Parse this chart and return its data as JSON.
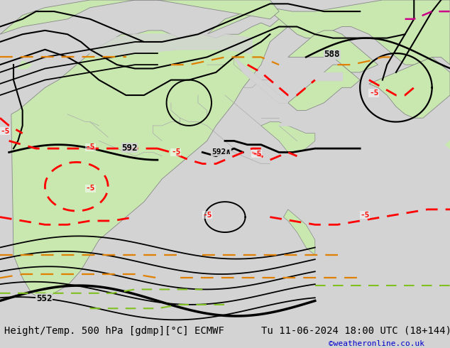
{
  "title_left": "Height/Temp. 500 hPa [gdmp][°C] ECMWF",
  "title_right": "Tu 11-06-2024 18:00 UTC (18+144)",
  "watermark": "©weatheronline.co.uk",
  "bg_color": "#d3d3d3",
  "land_color": "#c8e8b0",
  "ocean_color": "#d3d3d3",
  "contour_color": "#000000",
  "temp_neg5_color": "#ff0000",
  "isotherm_orange": "#e08000",
  "isotherm_green": "#80c020",
  "coast_color": "#888888",
  "border_color": "#aaaaaa",
  "font_size_title": 10,
  "font_size_label": 9,
  "font_size_watermark": 8
}
